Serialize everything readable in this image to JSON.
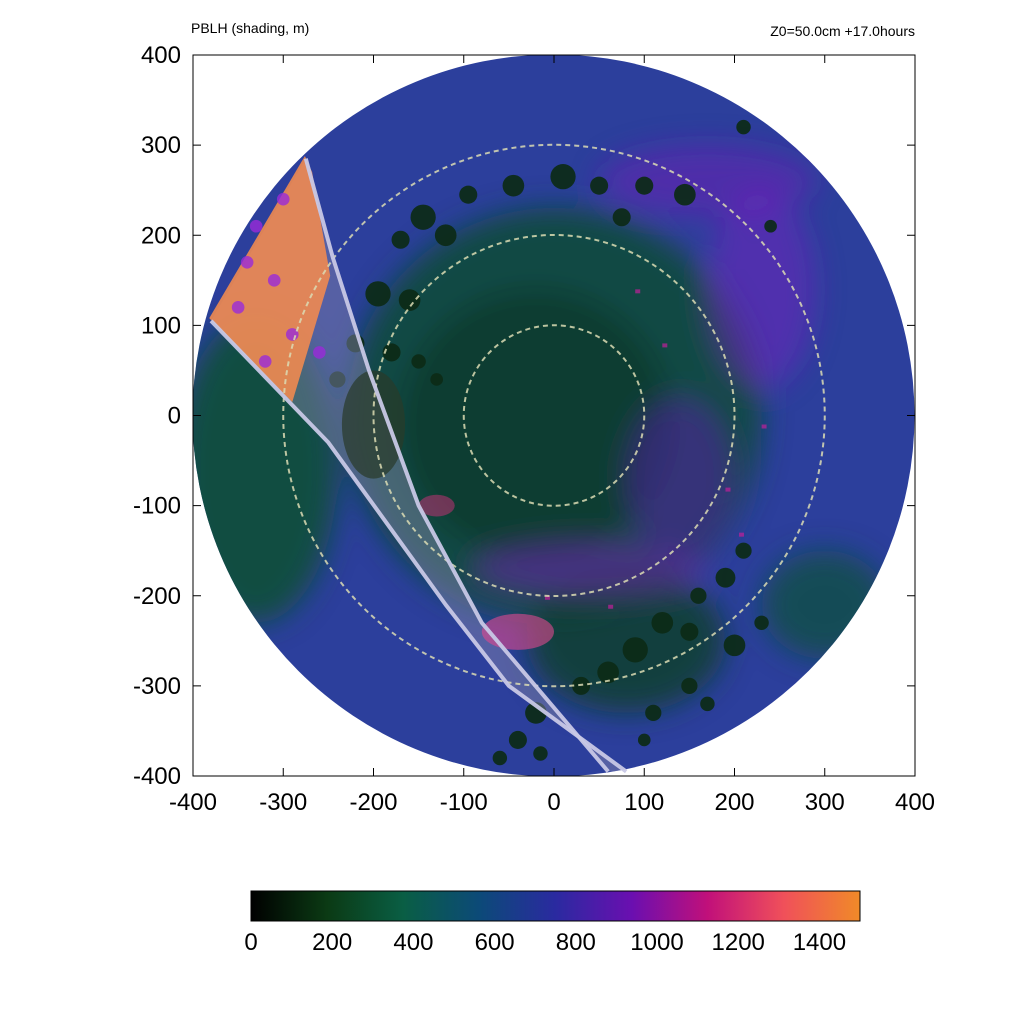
{
  "header": {
    "left": "PBLH (shading, m)",
    "right": "Z0=50.0cm  +17.0hours"
  },
  "chart_data": {
    "type": "heatmap",
    "title": "PBLH (shading, m)",
    "annotation": "Z0=50.0cm  +17.0hours",
    "xlim": [
      -400,
      400
    ],
    "ylim": [
      -400,
      400
    ],
    "xticks": [
      -400,
      -300,
      -200,
      -100,
      0,
      100,
      200,
      300,
      400
    ],
    "yticks": [
      -400,
      -300,
      -200,
      -100,
      0,
      100,
      200,
      300,
      400
    ],
    "domain_radius": 400,
    "range_rings": [
      100,
      200,
      300
    ],
    "colorbar": {
      "min": 0,
      "max": 1500,
      "ticks": [
        0,
        200,
        400,
        600,
        800,
        1000,
        1200,
        1400
      ],
      "colors": [
        "#000000",
        "#0b3a14",
        "#0a5e44",
        "#0c4a78",
        "#2a2aa0",
        "#6a0fb0",
        "#c1107a",
        "#f0505a",
        "#f08a28"
      ]
    },
    "colors": {
      "background_field": "#2c3f9c",
      "inner_core": "#0f4a3a",
      "cell_dark": "#0c2a16",
      "high_pblh": "#f08a50",
      "mid_pblh": "#9a2ad8",
      "ring": "#dcdcb4",
      "band_outline": "#c8c8e6"
    },
    "highlight_band_edges": {
      "outer_edge": [
        [
          -380,
          105
        ],
        [
          -250,
          -30
        ],
        [
          -120,
          -210
        ],
        [
          -50,
          -300
        ],
        [
          80,
          -395
        ]
      ],
      "inner_edge": [
        [
          -275,
          285
        ],
        [
          -245,
          175
        ],
        [
          -205,
          50
        ],
        [
          -150,
          -100
        ],
        [
          -80,
          -230
        ],
        [
          60,
          -395
        ]
      ]
    }
  }
}
